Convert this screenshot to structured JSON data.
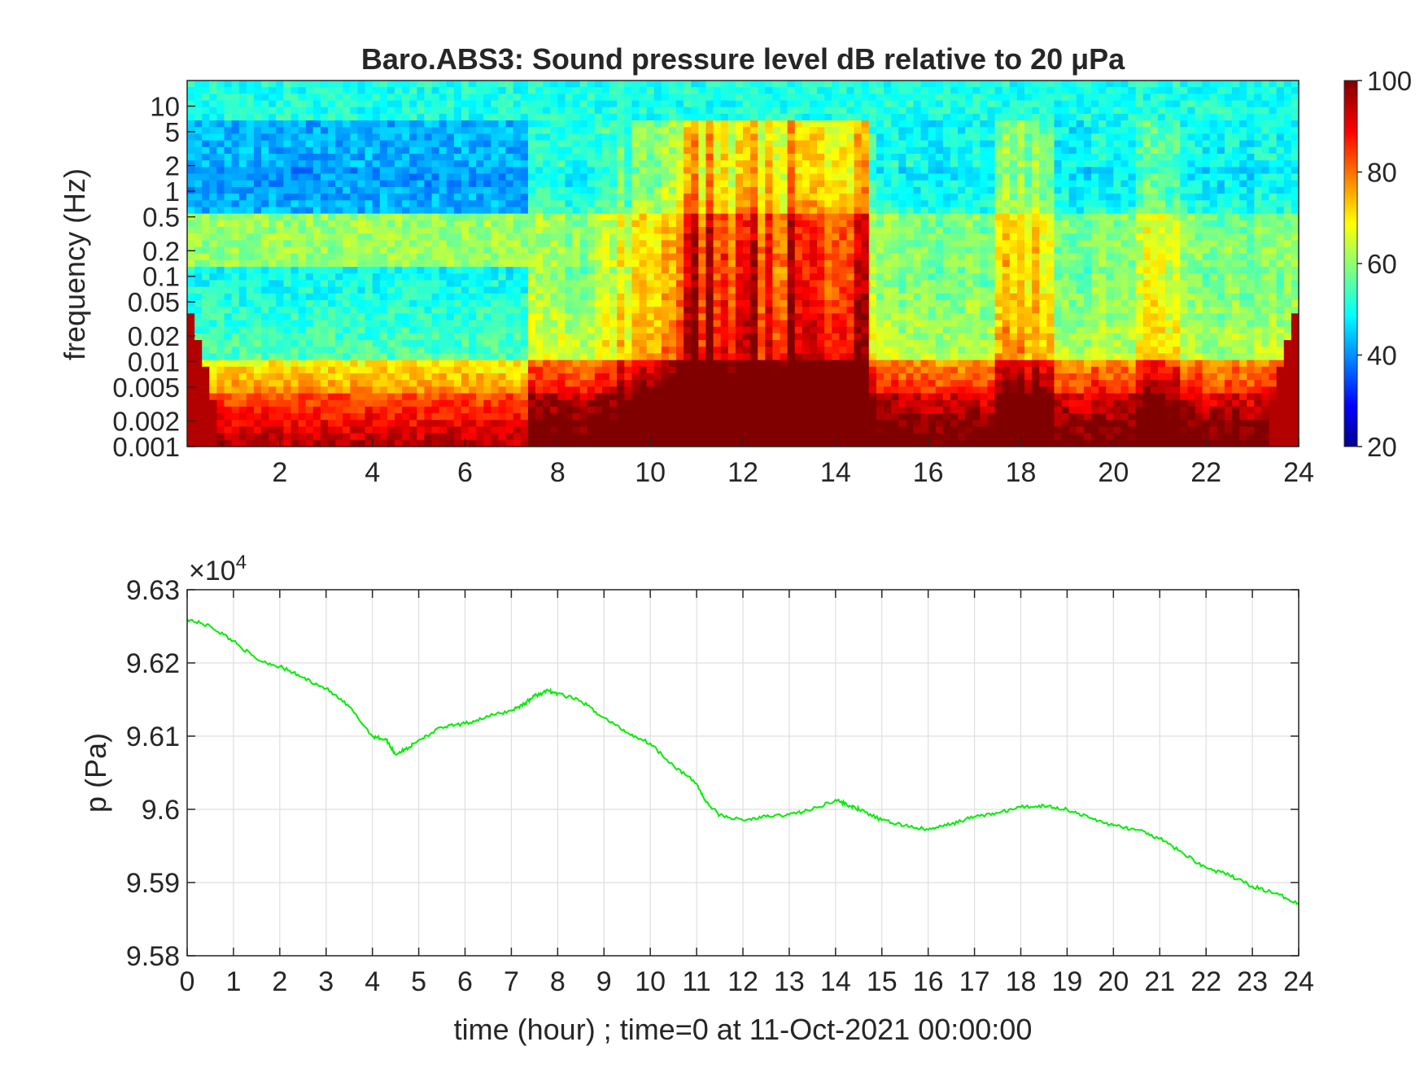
{
  "chart_data": [
    {
      "type": "heatmap",
      "title": "Baro.ABS3: Sound pressure level dB relative to 20 μPa",
      "ylabel": "frequency (Hz)",
      "xlabel": "",
      "y_scale": "log",
      "xlim": [
        0,
        24
      ],
      "ylim": [
        0.001,
        20
      ],
      "x_ticks": [
        "2",
        "4",
        "6",
        "8",
        "10",
        "12",
        "14",
        "16",
        "18",
        "20",
        "22",
        "24"
      ],
      "y_ticks": [
        "10",
        "5",
        "2",
        "1",
        "0.5",
        "0.2",
        "0.1",
        "0.05",
        "0.02",
        "0.01",
        "0.005",
        "0.002",
        "0.001"
      ],
      "colorbar": {
        "colormap": "jet",
        "range": [
          20,
          100
        ],
        "ticks": [
          "100",
          "80",
          "60",
          "40",
          "20"
        ]
      },
      "grid": false
    },
    {
      "type": "line",
      "ylabel": "p (Pa)",
      "xlabel": "time (hour) ; time=0 at 11-Oct-2021 00:00:00",
      "exponent_label": "×10",
      "exponent_power": "4",
      "xlim": [
        0,
        24
      ],
      "ylim": [
        95800,
        96300
      ],
      "x_ticks": [
        "0",
        "1",
        "2",
        "3",
        "4",
        "5",
        "6",
        "7",
        "8",
        "9",
        "10",
        "11",
        "12",
        "13",
        "14",
        "15",
        "16",
        "17",
        "18",
        "19",
        "20",
        "21",
        "22",
        "23",
        "24"
      ],
      "y_ticks": [
        "9.63",
        "9.62",
        "9.61",
        "9.6",
        "9.59",
        "9.58"
      ],
      "grid": true,
      "series": [
        {
          "color": "#00ee00",
          "x": [
            0,
            0.5,
            1,
            1.5,
            2,
            2.5,
            3,
            3.5,
            4,
            4.3,
            4.5,
            4.8,
            5,
            5.5,
            6,
            6.5,
            7,
            7.3,
            7.5,
            7.8,
            8,
            8.5,
            9,
            9.5,
            10,
            10.5,
            11,
            11.2,
            11.5,
            12,
            12.5,
            13,
            13.5,
            14,
            14.3,
            14.5,
            15,
            15.5,
            16,
            16.5,
            17,
            17.5,
            18,
            18.5,
            19,
            19.5,
            20,
            20.5,
            21,
            21.5,
            22,
            22.5,
            23,
            23.5,
            24
          ],
          "y": [
            96260,
            96250,
            96230,
            96205,
            96195,
            96180,
            96165,
            96140,
            96100,
            96095,
            96075,
            96085,
            96095,
            96112,
            96117,
            96127,
            96135,
            96145,
            96155,
            96162,
            96158,
            96148,
            96125,
            96105,
            96090,
            96060,
            96035,
            96010,
            95992,
            95985,
            95990,
            95993,
            96000,
            96013,
            96005,
            96000,
            95985,
            95978,
            95972,
            95980,
            95990,
            95995,
            96003,
            96005,
            96000,
            95988,
            95978,
            95972,
            95960,
            95940,
            95920,
            95910,
            95895,
            95885,
            95872
          ]
        }
      ]
    }
  ],
  "colors": {
    "line": "#00ee00",
    "axis": "#262626",
    "grid": "#dfdfdf"
  }
}
